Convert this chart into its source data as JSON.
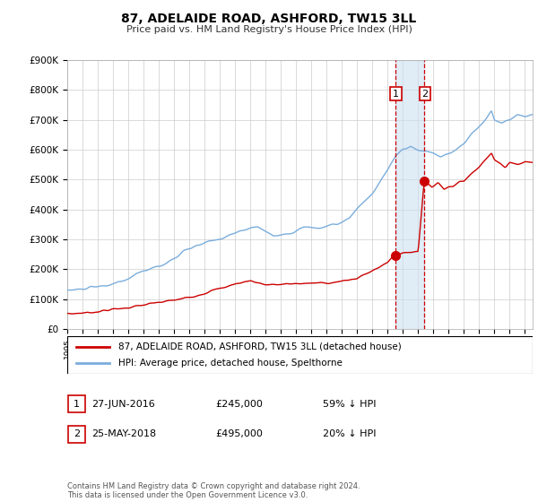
{
  "title": "87, ADELAIDE ROAD, ASHFORD, TW15 3LL",
  "subtitle": "Price paid vs. HM Land Registry's House Price Index (HPI)",
  "ylabel_ticks": [
    "£0",
    "£100K",
    "£200K",
    "£300K",
    "£400K",
    "£500K",
    "£600K",
    "£700K",
    "£800K",
    "£900K"
  ],
  "ylim": [
    0,
    900000
  ],
  "xlim_start": 1995.0,
  "xlim_end": 2025.5,
  "hpi_color": "#7aaddc",
  "price_color": "#cc0000",
  "vline_color": "#cc0000",
  "shade_color": "#cce0f0",
  "background_color": "#ffffff",
  "grid_color": "#cccccc",
  "legend_label_red": "87, ADELAIDE ROAD, ASHFORD, TW15 3LL (detached house)",
  "legend_label_blue": "HPI: Average price, detached house, Spelthorne",
  "transaction1_label": "1",
  "transaction1_date": "27-JUN-2016",
  "transaction1_price": "£245,000",
  "transaction1_note": "59% ↓ HPI",
  "transaction2_label": "2",
  "transaction2_date": "25-MAY-2018",
  "transaction2_price": "£495,000",
  "transaction2_note": "20% ↓ HPI",
  "footnote": "Contains HM Land Registry data © Crown copyright and database right 2024.\nThis data is licensed under the Open Government Licence v3.0.",
  "transaction1_year": 2016.49,
  "transaction2_year": 2018.39
}
